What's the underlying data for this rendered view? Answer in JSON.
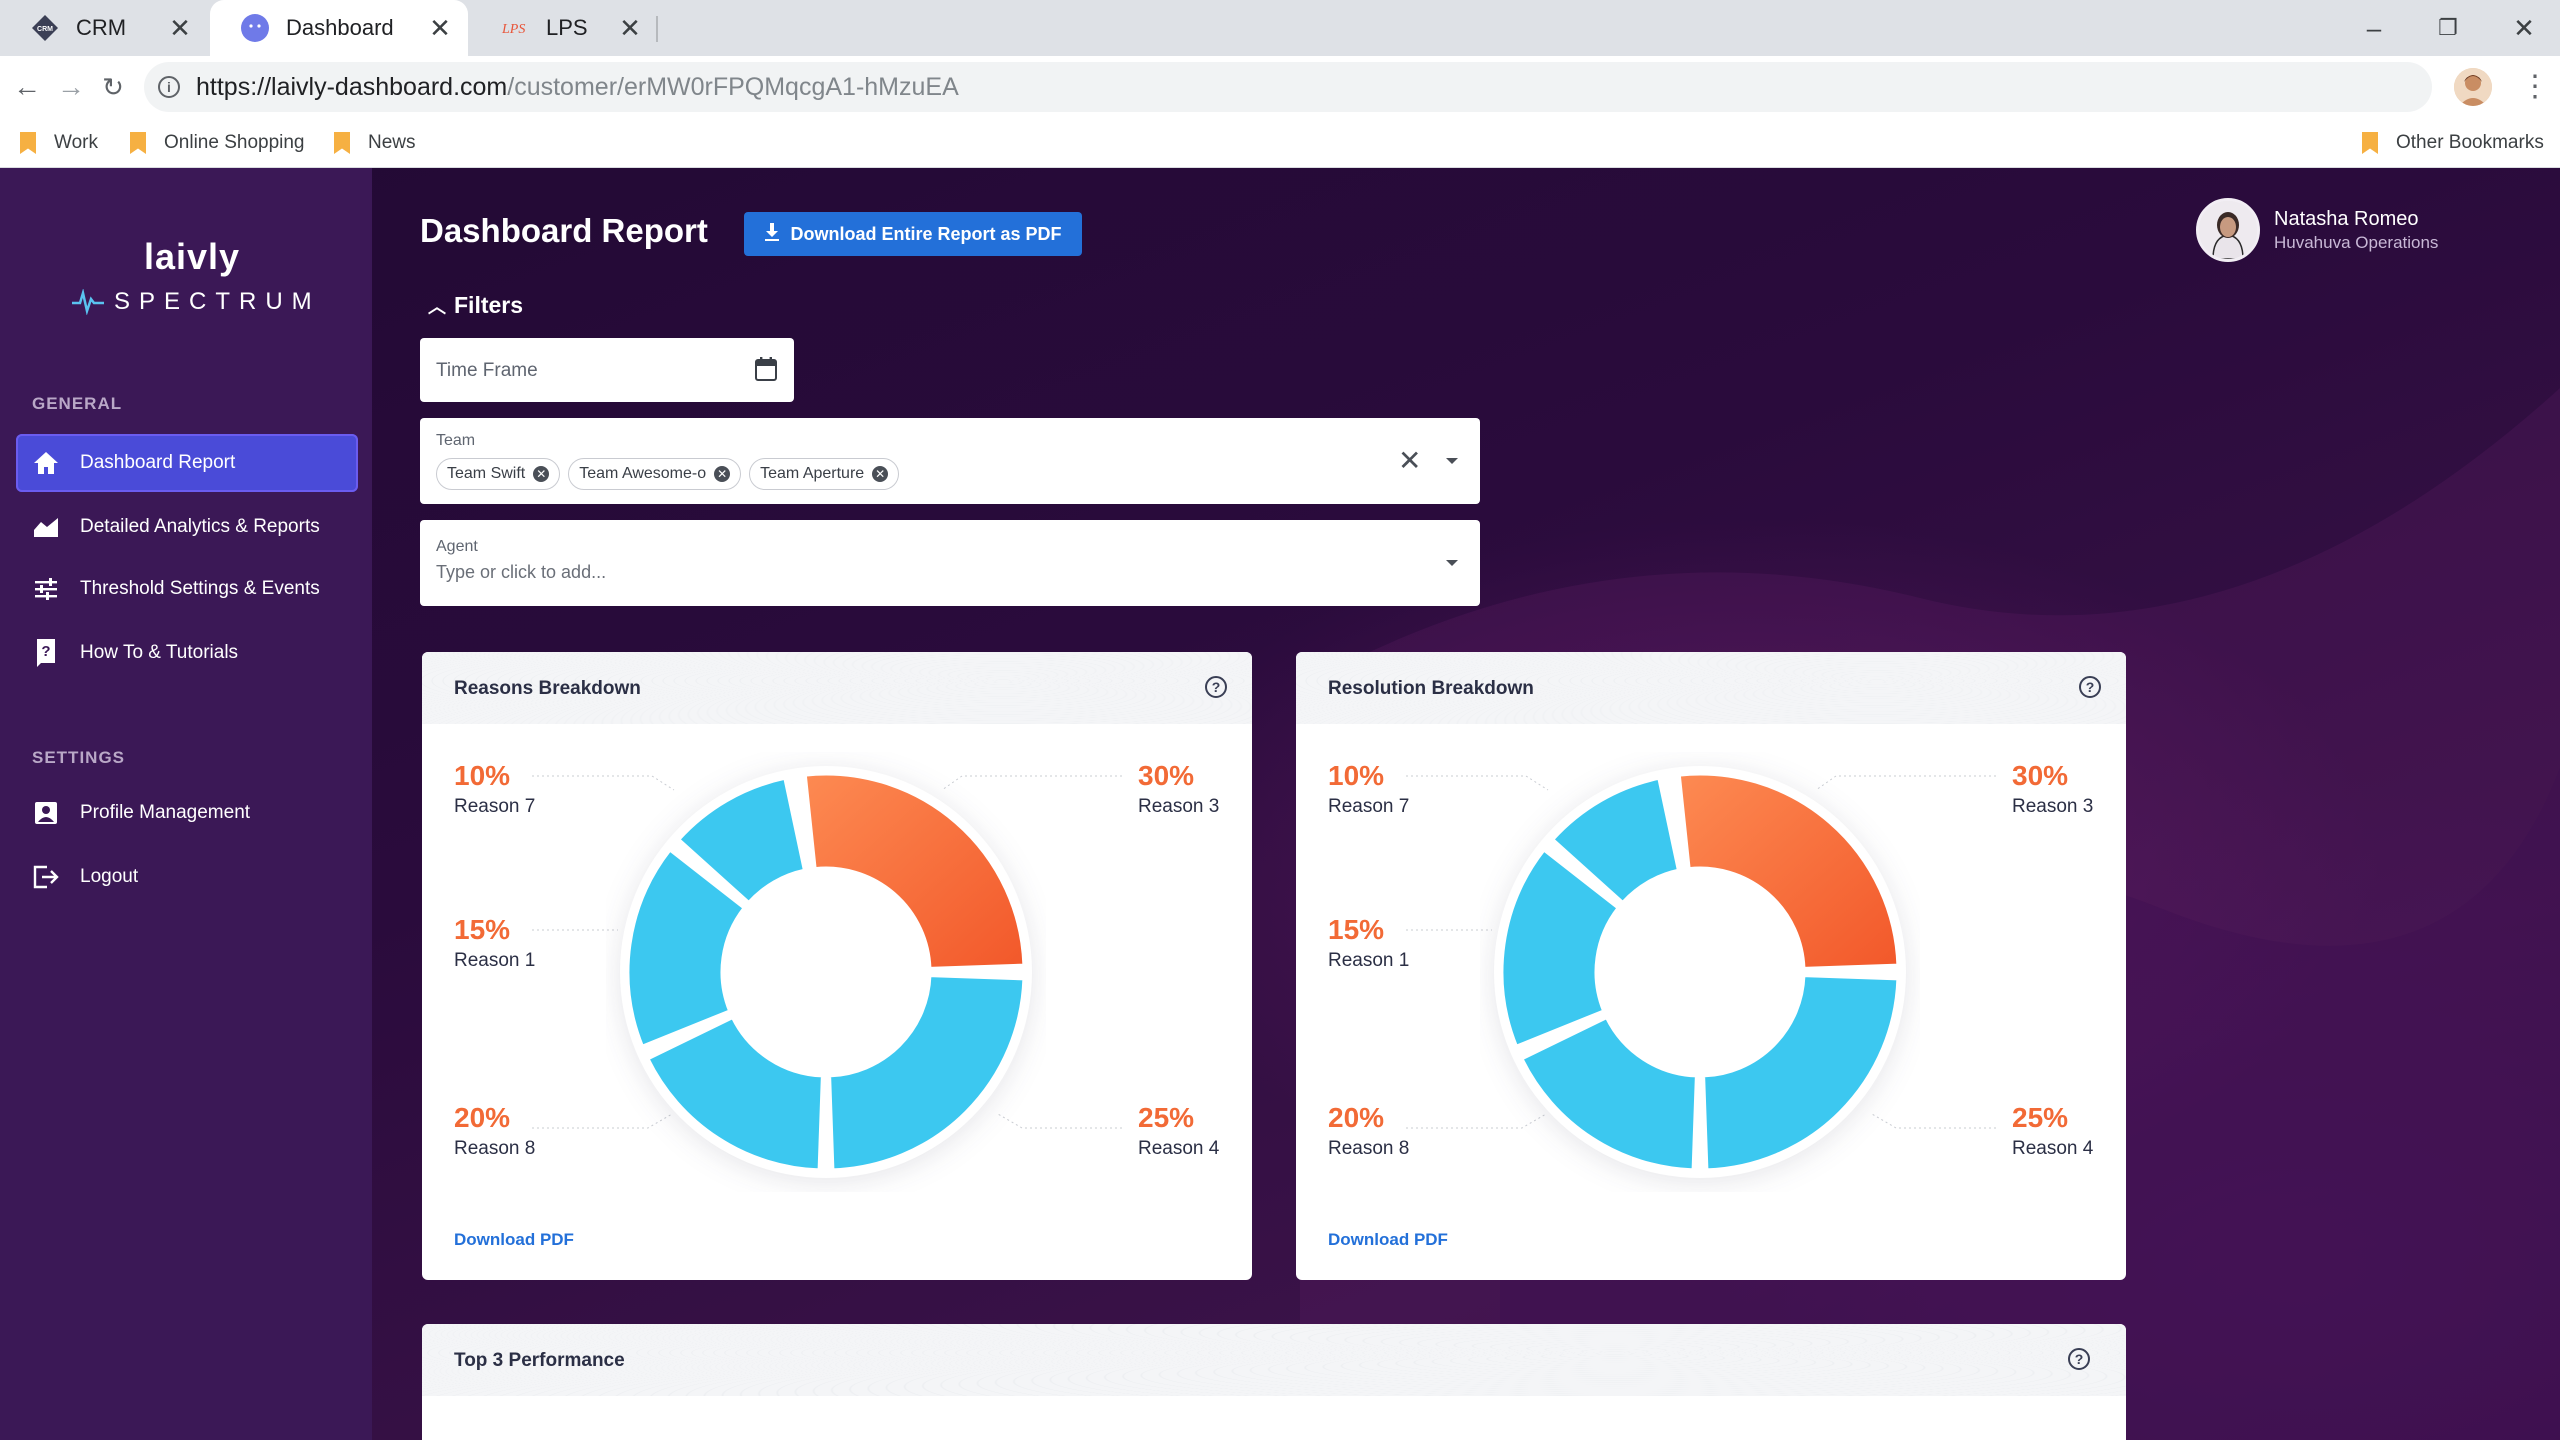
{
  "browser": {
    "tabs": [
      {
        "label": "CRM"
      },
      {
        "label": "Dashboard"
      },
      {
        "label": "LPS"
      }
    ],
    "url_host": "https://laivly-dashboard.com",
    "url_path": "/customer/erMW0rFPQMqcgA1-hMzuEA",
    "bookmarks": [
      "Work",
      "Online Shopping",
      "News"
    ],
    "other_bookmarks": "Other Bookmarks"
  },
  "sidebar": {
    "logo_word": "laivly",
    "logo_sub": "SPECTRUM",
    "general_label": "GENERAL",
    "general_items": [
      {
        "label": "Dashboard Report",
        "icon": "home-icon",
        "active": true
      },
      {
        "label": "Detailed Analytics & Reports",
        "icon": "chart-area-icon"
      },
      {
        "label": "Threshold Settings & Events",
        "icon": "sliders-icon"
      },
      {
        "label": "How To & Tutorials",
        "icon": "help-book-icon"
      }
    ],
    "settings_label": "SETTINGS",
    "settings_items": [
      {
        "label": "Profile Management",
        "icon": "profile-icon"
      },
      {
        "label": "Logout",
        "icon": "logout-icon"
      }
    ]
  },
  "header": {
    "title": "Dashboard Report",
    "download_all": "Download Entire Report as PDF",
    "user_name": "Natasha Romeo",
    "user_org": "Huvahuva Operations"
  },
  "filters": {
    "title": "Filters",
    "time_frame_placeholder": "Time Frame",
    "team_label": "Team",
    "team_chips": [
      "Team Swift",
      "Team Awesome-o",
      "Team Aperture"
    ],
    "agent_label": "Agent",
    "agent_placeholder": "Type or click to add..."
  },
  "cards": [
    {
      "title": "Reasons Breakdown",
      "download": "Download PDF",
      "labels": [
        {
          "pct": "10%",
          "reason": "Reason 7"
        },
        {
          "pct": "15%",
          "reason": "Reason 1"
        },
        {
          "pct": "20%",
          "reason": "Reason 8"
        },
        {
          "pct": "30%",
          "reason": "Reason 3"
        },
        {
          "pct": "25%",
          "reason": "Reason 4"
        }
      ]
    },
    {
      "title": "Resolution Breakdown",
      "download": "Download PDF",
      "labels": [
        {
          "pct": "10%",
          "reason": "Reason 7"
        },
        {
          "pct": "15%",
          "reason": "Reason 1"
        },
        {
          "pct": "20%",
          "reason": "Reason 8"
        },
        {
          "pct": "30%",
          "reason": "Reason 3"
        },
        {
          "pct": "25%",
          "reason": "Reason 4"
        }
      ]
    }
  ],
  "bottom_card": {
    "title": "Top 3 Performance"
  },
  "colors": {
    "accent_orange": "#f26a36",
    "accent_blue": "#3cc8f0",
    "primary": "#2370d9"
  }
}
